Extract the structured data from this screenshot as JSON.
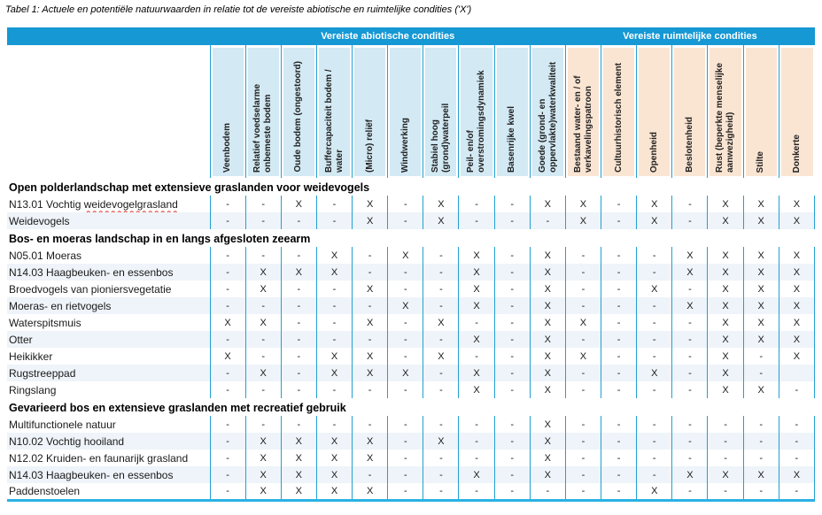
{
  "title": "Tabel 1: Actuele en potentiële natuurwaarden in relatie tot de vereiste abiotische en ruimtelijke condities ('X')",
  "colors": {
    "band-blue": "#1598d4",
    "cell-blue": "#d3e9f3",
    "cell-peach": "#fae5d3",
    "line-blue": "#22a0d2",
    "stripe": "#eef4f9",
    "bottom-line": "#2ab1e3",
    "text-dark": "#1a1a1a"
  },
  "table": {
    "groups": [
      {
        "label": "Vereiste abiotische condities",
        "span": 10,
        "kind": "abiotisch"
      },
      {
        "label": "Vereiste ruimtelijke condities",
        "span": 7,
        "kind": "ruimtelijk"
      }
    ],
    "columns": [
      {
        "label": "Veenbodem",
        "group": "abiotisch"
      },
      {
        "label": "Relatief voedselarme onbemeste bodem",
        "group": "abiotisch"
      },
      {
        "label": "Oude bodem (ongestoord)",
        "group": "abiotisch"
      },
      {
        "label": "Buffercapaciteit bodem / water",
        "group": "abiotisch"
      },
      {
        "label": "(Micro) reliëf",
        "group": "abiotisch"
      },
      {
        "label": "Windwerking",
        "group": "abiotisch"
      },
      {
        "label": "Stabiel hoog (grond)waterpeil",
        "group": "abiotisch"
      },
      {
        "label": "Peil- en/of overstromingsdynamiek",
        "group": "abiotisch"
      },
      {
        "label": "Basenrijke kwel",
        "group": "abiotisch"
      },
      {
        "label": "Goede (grond- en oppervlakte)waterkwaliteit",
        "group": "abiotisch"
      },
      {
        "label": "Bestaand water- en / of verkavelingspatroon",
        "group": "ruimtelijk"
      },
      {
        "label": "Cultuurhistorisch element",
        "group": "ruimtelijk"
      },
      {
        "label": "Openheid",
        "group": "ruimtelijk"
      },
      {
        "label": "Beslotenheid",
        "group": "ruimtelijk"
      },
      {
        "label": "Rust (beperkte menselijke aanwezigheid)",
        "group": "ruimtelijk"
      },
      {
        "label": "Stilte",
        "group": "ruimtelijk"
      },
      {
        "label": "Donkerte",
        "group": "ruimtelijk"
      }
    ],
    "sections": [
      {
        "header": "Open polderlandschap met extensieve graslanden voor weidevogels",
        "rows": [
          {
            "label": "N13.01 Vochtig ",
            "wavy": "weidevogelgrasland",
            "values": [
              "-",
              "-",
              "X",
              "-",
              "X",
              "-",
              "X",
              "-",
              "-",
              "X",
              "X",
              "-",
              "X",
              "-",
              "X",
              "X",
              "X"
            ]
          },
          {
            "label": "Weidevogels",
            "values": [
              "-",
              "-",
              "-",
              "-",
              "X",
              "-",
              "X",
              "-",
              "-",
              "-",
              "X",
              "-",
              "X",
              "-",
              "X",
              "X",
              "X"
            ]
          }
        ]
      },
      {
        "header": "Bos- en moeras landschap in en langs afgesloten zeearm",
        "rows": [
          {
            "label": "N05.01 Moeras",
            "values": [
              "-",
              "-",
              "-",
              "X",
              "-",
              "X",
              "-",
              "X",
              "-",
              "X",
              "-",
              "-",
              "-",
              "X",
              "X",
              "X",
              "X"
            ]
          },
          {
            "label": "N14.03 Haagbeuken- en essenbos",
            "values": [
              "-",
              "X",
              "X",
              "X",
              "-",
              "-",
              "-",
              "X",
              "-",
              "X",
              "-",
              "-",
              "-",
              "X",
              "X",
              "X",
              "X"
            ]
          },
          {
            "label": "Broedvogels van pioniersvegetatie",
            "values": [
              "-",
              "X",
              "-",
              "-",
              "X",
              "-",
              "-",
              "X",
              "-",
              "X",
              "-",
              "-",
              "X",
              "-",
              "X",
              "X",
              "X"
            ]
          },
          {
            "label": "Moeras- en rietvogels",
            "values": [
              "-",
              "-",
              "-",
              "-",
              "-",
              "X",
              "-",
              "X",
              "-",
              "X",
              "-",
              "-",
              "-",
              "X",
              "X",
              "X",
              "X"
            ]
          },
          {
            "label": "Waterspitsmuis",
            "values": [
              "X",
              "X",
              "-",
              "-",
              "X",
              "-",
              "X",
              "-",
              "-",
              "X",
              "X",
              "-",
              "-",
              "-",
              "X",
              "X",
              "X"
            ]
          },
          {
            "label": "Otter",
            "values": [
              "-",
              "-",
              "-",
              "-",
              "-",
              "-",
              "-",
              "X",
              "-",
              "X",
              "-",
              "-",
              "-",
              "-",
              "X",
              "X",
              "X"
            ]
          },
          {
            "label": "Heikikker",
            "values": [
              "X",
              "-",
              "-",
              "X",
              "X",
              "-",
              "X",
              "-",
              "-",
              "X",
              "X",
              "-",
              "-",
              "-",
              "X",
              "-",
              "X"
            ]
          },
          {
            "label": "Rugstreeppad",
            "values": [
              "-",
              "X",
              "-",
              "X",
              "X",
              "X",
              "-",
              "X",
              "-",
              "X",
              "-",
              "-",
              "X",
              "-",
              "X",
              "-",
              ""
            ]
          },
          {
            "label": "Ringslang",
            "values": [
              "-",
              "-",
              "-",
              "-",
              "-",
              "-",
              "-",
              "X",
              "-",
              "X",
              "-",
              "-",
              "-",
              "-",
              "X",
              "X",
              "-"
            ]
          }
        ]
      },
      {
        "header": "Gevarieerd bos en extensieve graslanden met recreatief gebruik",
        "rows": [
          {
            "label": "Multifunctionele natuur",
            "values": [
              "-",
              "-",
              "-",
              "-",
              "-",
              "-",
              "-",
              "-",
              "-",
              "X",
              "-",
              "-",
              "-",
              "-",
              "-",
              "-",
              "-"
            ]
          },
          {
            "label": "N10.02 Vochtig hooiland",
            "values": [
              "-",
              "X",
              "X",
              "X",
              "X",
              "-",
              "X",
              "-",
              "-",
              "X",
              "-",
              "-",
              "-",
              "-",
              "-",
              "-",
              "-"
            ]
          },
          {
            "label": "N12.02 Kruiden- en faunarijk grasland",
            "values": [
              "-",
              "X",
              "X",
              "X",
              "X",
              "-",
              "-",
              "-",
              "-",
              "X",
              "-",
              "-",
              "-",
              "-",
              "-",
              "-",
              "-"
            ]
          },
          {
            "label": "N14.03 Haagbeuken- en essenbos",
            "values": [
              "-",
              "X",
              "X",
              "X",
              "-",
              "-",
              "-",
              "X",
              "-",
              "X",
              "-",
              "-",
              "-",
              "X",
              "X",
              "X",
              "X"
            ]
          },
          {
            "label": "Paddenstoelen",
            "values": [
              "-",
              "X",
              "X",
              "X",
              "X",
              "-",
              "-",
              "-",
              "-",
              "-",
              "-",
              "-",
              "X",
              "-",
              "-",
              "-",
              "-"
            ]
          }
        ]
      }
    ]
  }
}
